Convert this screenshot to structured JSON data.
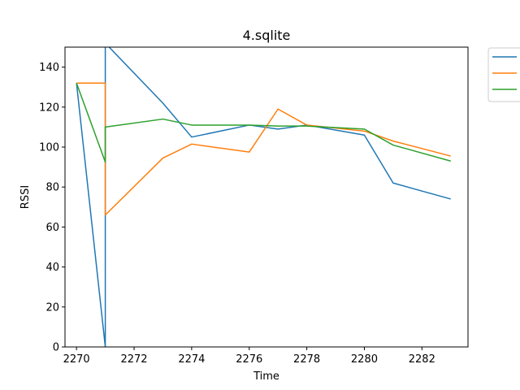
{
  "chart_data": {
    "type": "line",
    "title": "4.sqlite",
    "xlabel": "Time",
    "ylabel": "RSSI",
    "xlim": [
      2269.6,
      2283.6
    ],
    "ylim": [
      0,
      150
    ],
    "xticks": [
      2270,
      2272,
      2274,
      2276,
      2278,
      2280,
      2282
    ],
    "yticks": [
      0,
      20,
      40,
      60,
      80,
      100,
      120,
      140
    ],
    "grid": false,
    "legend": "outside-top-right",
    "series": [
      {
        "color": "#1f77b4",
        "points": [
          [
            2270,
            132
          ],
          [
            2271,
            0
          ],
          [
            2271,
            152
          ],
          [
            2273,
            122
          ],
          [
            2274,
            105
          ],
          [
            2276,
            111
          ],
          [
            2277,
            109
          ],
          [
            2278,
            111
          ],
          [
            2280,
            106
          ],
          [
            2281,
            82
          ],
          [
            2283,
            74
          ]
        ]
      },
      {
        "color": "#ff7f0e",
        "points": [
          [
            2270,
            132
          ],
          [
            2271,
            132
          ],
          [
            2271,
            66
          ],
          [
            2273,
            94.5
          ],
          [
            2274,
            101.5
          ],
          [
            2276,
            97.5
          ],
          [
            2277,
            119
          ],
          [
            2278,
            111
          ],
          [
            2280,
            108
          ],
          [
            2281,
            103
          ],
          [
            2283,
            95.5
          ]
        ]
      },
      {
        "color": "#2ca02c",
        "points": [
          [
            2270,
            132
          ],
          [
            2271,
            92.5
          ],
          [
            2271,
            110
          ],
          [
            2273,
            114
          ],
          [
            2274,
            111
          ],
          [
            2276,
            111
          ],
          [
            2277,
            110.5
          ],
          [
            2278,
            110.5
          ],
          [
            2280,
            109
          ],
          [
            2281,
            101
          ],
          [
            2283,
            93
          ]
        ]
      }
    ]
  }
}
